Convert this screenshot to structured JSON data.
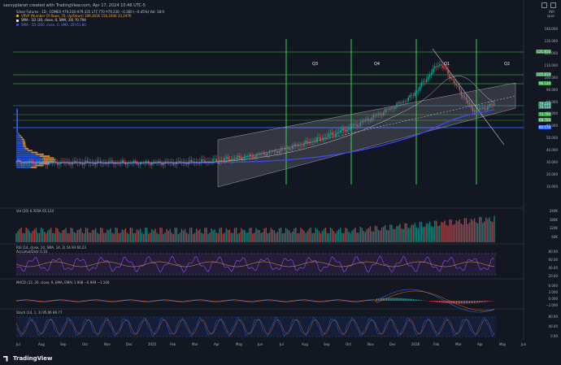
{
  "caption": "savvyplanet created with TradingView.com, Apr 17, 2024 10:46 UTC-5",
  "header": {
    "lines": [
      {
        "text": "Silver Futures · 1D · COMEX  ₹79.230  H79.335  L77.770  ₹79.230  −0.360 (−0.45%)   Vol: 18.9",
        "color": "#c8ccd2",
        "chip": ""
      },
      {
        "text": "VRVP (Number Of Rows, 70, Up/Down)  189,361K  156,164K  33,197K",
        "color": "#f2a33a",
        "chip": "#f2a33a"
      },
      {
        "text": "SMA · 1D (30, close, 0, SMA, 20)  70.794",
        "color": "#e0e0e0",
        "chip": "#ffffff"
      },
      {
        "text": "SMA · 1D (200, close, 0, SMA, 20)  61.80",
        "color": "#6f7dff",
        "chip": "#3d4bff"
      }
    ],
    "currency_lines": [
      "INR",
      "spas"
    ]
  },
  "quarters": [
    "Q3",
    "Q4",
    "Q1",
    "Q2"
  ],
  "panels": {
    "volume": "Vol (20)  6.305K  65.124",
    "rsi": "RSI (14, close, 14, SMA, 14, 2)  54.93  60.23",
    "rsi2": "Accumul/Distr  0.10",
    "macd": "MACD (12, 26, close, 9, EMA, EMA)  1.908  −0.949  −1.100",
    "stoch": "Stoch (14, 1, 3)  95.06  89.77"
  },
  "right_axis_ticks": [
    {
      "label": "140.000"
    },
    {
      "label": "130.000"
    },
    {
      "label": "120.000"
    },
    {
      "label": "110.000"
    },
    {
      "label": "100.000"
    },
    {
      "label": "90.000"
    },
    {
      "label": "80.000"
    },
    {
      "label": "70.000"
    },
    {
      "label": "60.000"
    },
    {
      "label": "50.000"
    },
    {
      "label": "40.000"
    },
    {
      "label": "30.000"
    },
    {
      "label": "20.000"
    },
    {
      "label": "10.000"
    }
  ],
  "price_tags": [
    {
      "label": "121.810",
      "color": "#2f9e44"
    },
    {
      "label": "105.810",
      "color": "#2f9e44"
    },
    {
      "label": "96.530",
      "color": "#2f9e44"
    },
    {
      "label": "79.230",
      "color": "#1b8f5c"
    },
    {
      "label": "79.510",
      "color": "#2a7c6f"
    },
    {
      "label": "73.790",
      "color": "#2f9e44"
    },
    {
      "label": "68.700",
      "color": "#2f9e44"
    },
    {
      "label": "60.570",
      "color": "#2962ff"
    }
  ],
  "volume_ticks": [
    "240K",
    "180K",
    "120K",
    "60K"
  ],
  "rsi_ticks": [
    "80.00",
    "60.00",
    "40.00",
    "20.00"
  ],
  "macd_ticks": [
    "6.000",
    "3.000",
    "0.000",
    "−3.000"
  ],
  "stoch_ticks": [
    "80.00",
    "40.00",
    "0.00"
  ],
  "x_axis": [
    "Jul",
    "Aug",
    "Sep",
    "Oct",
    "Nov",
    "Dec",
    "2025",
    "Feb",
    "Mar",
    "Apr",
    "May",
    "Jun",
    "Jul",
    "Aug",
    "Sep",
    "Oct",
    "Nov",
    "Dec",
    "2026",
    "Feb",
    "Mar",
    "Apr",
    "May",
    "Jun"
  ],
  "footer": {
    "brand": "TradingView"
  }
}
